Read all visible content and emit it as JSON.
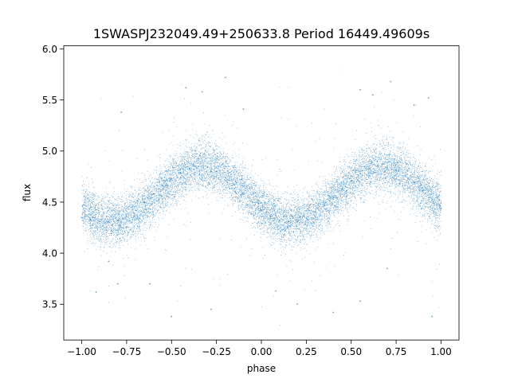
{
  "chart_data": {
    "type": "scatter",
    "title": "1SWASPJ232049.49+250633.8 Period 16449.49609s",
    "xlabel": "phase",
    "ylabel": "flux",
    "xlim": [
      -1.1,
      1.1
    ],
    "ylim": [
      3.15,
      6.03
    ],
    "x_ticks": [
      -1.0,
      -0.75,
      -0.5,
      -0.25,
      0.0,
      0.25,
      0.5,
      0.75,
      1.0
    ],
    "x_tick_labels": [
      "−1.00",
      "−0.75",
      "−0.50",
      "−0.25",
      "0.00",
      "0.25",
      "0.50",
      "0.75",
      "1.00"
    ],
    "y_ticks": [
      3.5,
      4.0,
      4.5,
      5.0,
      5.5,
      6.0
    ],
    "y_tick_labels": [
      "3.5",
      "4.0",
      "4.5",
      "5.0",
      "5.5",
      "6.0"
    ],
    "grid": false,
    "legend": "none",
    "point_color": "#1f77b4",
    "phase_range": [
      -1.0,
      1.0
    ],
    "trend": {
      "baseline_flux": 4.58,
      "amplitude": 0.27,
      "peak_phase": 0.67,
      "period_in_phase": 1.0,
      "typical_scatter": 0.12
    },
    "points": [
      [
        -1.0,
        4.35
      ],
      [
        -0.95,
        4.33
      ],
      [
        -0.9,
        4.31
      ],
      [
        -0.85,
        4.31
      ],
      [
        -0.8,
        4.32
      ],
      [
        -0.75,
        4.36
      ],
      [
        -0.7,
        4.42
      ],
      [
        -0.65,
        4.5
      ],
      [
        -0.6,
        4.58
      ],
      [
        -0.55,
        4.66
      ],
      [
        -0.5,
        4.73
      ],
      [
        -0.45,
        4.79
      ],
      [
        -0.4,
        4.83
      ],
      [
        -0.35,
        4.85
      ],
      [
        -0.3,
        4.84
      ],
      [
        -0.25,
        4.8
      ],
      [
        -0.2,
        4.74
      ],
      [
        -0.15,
        4.67
      ],
      [
        -0.1,
        4.58
      ],
      [
        -0.05,
        4.5
      ],
      [
        0.0,
        4.42
      ],
      [
        0.05,
        4.36
      ],
      [
        0.1,
        4.32
      ],
      [
        0.15,
        4.31
      ],
      [
        0.2,
        4.31
      ],
      [
        0.25,
        4.34
      ],
      [
        0.3,
        4.4
      ],
      [
        0.35,
        4.47
      ],
      [
        0.4,
        4.55
      ],
      [
        0.45,
        4.63
      ],
      [
        0.5,
        4.71
      ],
      [
        0.55,
        4.78
      ],
      [
        0.6,
        4.83
      ],
      [
        0.65,
        4.85
      ],
      [
        0.7,
        4.84
      ],
      [
        0.75,
        4.81
      ],
      [
        0.8,
        4.76
      ],
      [
        0.85,
        4.69
      ],
      [
        0.9,
        4.61
      ],
      [
        0.95,
        4.52
      ],
      [
        1.0,
        4.44
      ],
      [
        -0.42,
        5.62
      ],
      [
        -0.33,
        5.58
      ],
      [
        -0.2,
        5.72
      ],
      [
        -0.1,
        5.41
      ],
      [
        0.55,
        5.6
      ],
      [
        0.62,
        5.55
      ],
      [
        0.72,
        5.68
      ],
      [
        0.85,
        5.45
      ],
      [
        0.93,
        5.52
      ],
      [
        -0.78,
        5.38
      ],
      [
        -0.92,
        3.62
      ],
      [
        -0.8,
        3.7
      ],
      [
        -0.85,
        3.92
      ],
      [
        0.08,
        3.63
      ],
      [
        0.2,
        3.5
      ],
      [
        0.4,
        3.42
      ],
      [
        -0.5,
        3.38
      ],
      [
        0.55,
        3.53
      ],
      [
        0.95,
        3.38
      ],
      [
        -0.28,
        3.45
      ],
      [
        -0.62,
        3.7
      ],
      [
        0.7,
        3.85
      ]
    ],
    "point_count": 13000
  }
}
